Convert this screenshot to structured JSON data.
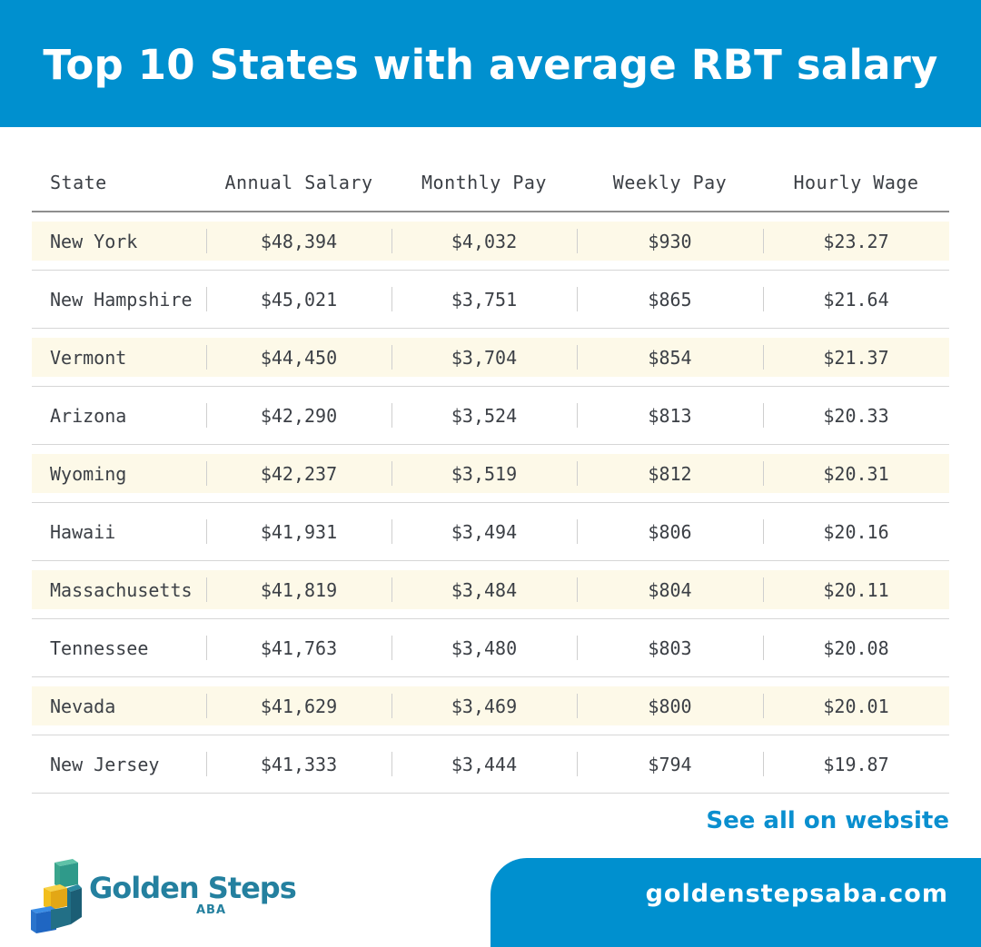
{
  "title": "Top 10 States with average RBT salary",
  "table": {
    "headers": [
      "State",
      "Annual Salary",
      "Monthly Pay",
      "Weekly Pay",
      "Hourly Wage"
    ],
    "rows": [
      [
        "New York",
        "$48,394",
        "$4,032",
        "$930",
        "$23.27"
      ],
      [
        "New Hampshire",
        "$45,021",
        "$3,751",
        "$865",
        "$21.64"
      ],
      [
        "Vermont",
        "$44,450",
        "$3,704",
        "$854",
        "$21.37"
      ],
      [
        "Arizona",
        "$42,290",
        "$3,524",
        "$813",
        "$20.33"
      ],
      [
        "Wyoming",
        "$42,237",
        "$3,519",
        "$812",
        "$20.31"
      ],
      [
        "Hawaii",
        "$41,931",
        "$3,494",
        "$806",
        "$20.16"
      ],
      [
        "Massachusetts",
        "$41,819",
        "$3,484",
        "$804",
        "$20.11"
      ],
      [
        "Tennessee",
        "$41,763",
        "$3,480",
        "$803",
        "$20.08"
      ],
      [
        "Nevada",
        "$41,629",
        "$3,469",
        "$800",
        "$20.01"
      ],
      [
        "New Jersey",
        "$41,333",
        "$3,444",
        "$794",
        "$19.87"
      ]
    ]
  },
  "footer": {
    "see_all": "See all on website",
    "domain": "goldenstepsaba.com"
  },
  "logo": {
    "name": "Golden Steps",
    "sub": "ABA",
    "icon": "stacked-blocks-icon"
  },
  "colors": {
    "header_bg": "#0090cf",
    "row_highlight": "#fdf9e8",
    "text": "#3b3f45",
    "link": "#0a8fcf",
    "logo_text": "#24809f"
  }
}
